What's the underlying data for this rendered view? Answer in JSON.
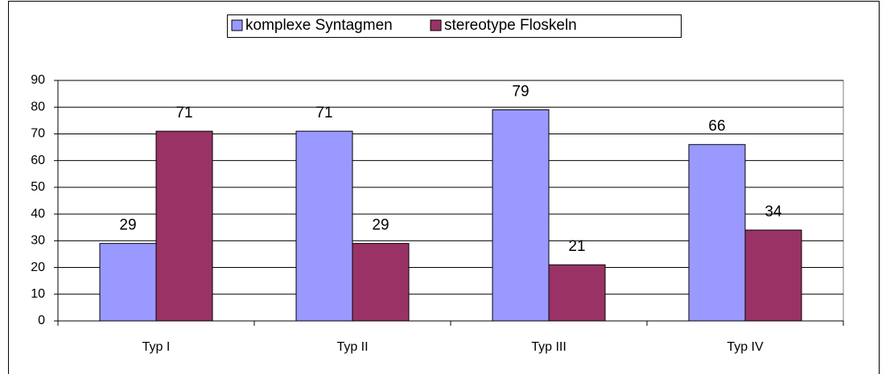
{
  "chart_data": {
    "type": "bar",
    "categories": [
      "Typ I",
      "Typ II",
      "Typ III",
      "Typ IV"
    ],
    "series": [
      {
        "name": "komplexe Syntagmen",
        "color": "#9999ff",
        "values": [
          29,
          71,
          79,
          66
        ]
      },
      {
        "name": "stereotype Floskeln",
        "color": "#993366",
        "values": [
          71,
          29,
          21,
          34
        ]
      }
    ],
    "ylim": [
      0,
      90
    ],
    "yticks": [
      0,
      10,
      20,
      30,
      40,
      50,
      60,
      70,
      80,
      90
    ],
    "grid": true,
    "legend": "top",
    "data_labels": true
  }
}
